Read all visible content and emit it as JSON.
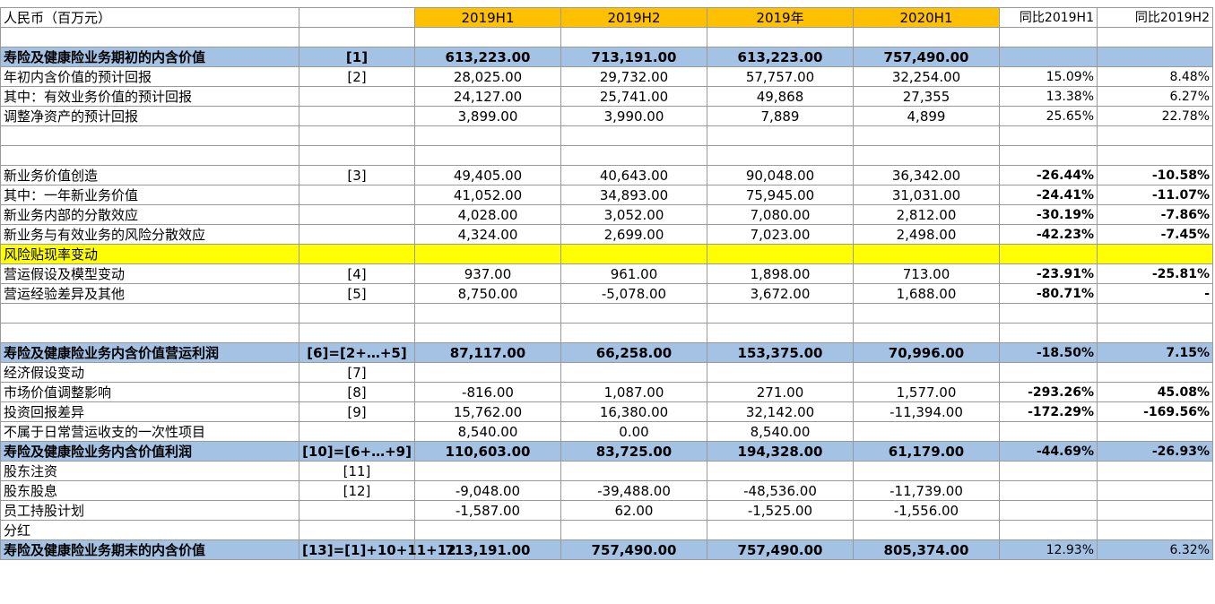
{
  "table": {
    "rows": [
      [
        "人民币（百万元）",
        null,
        "2019H1",
        "2019H2",
        "2019年",
        "2020H1",
        "同比2019H1",
        "同比2019H2"
      ],
      [
        null,
        null,
        null,
        null,
        null,
        null,
        null,
        null
      ],
      [
        "寿险及健康险业务期初的内含价值",
        "[1]",
        "613,223.00",
        "713,191.00",
        "613,223.00",
        "757,490.00",
        null,
        null
      ],
      [
        "年初内含价值的预计回报",
        "[2]",
        "28,025.00",
        "29,732.00",
        "57,757.00",
        "32,254.00",
        "15.09%",
        "8.48%"
      ],
      [
        "其中：有效业务价值的预计回报",
        null,
        "24,127.00",
        "25,741.00",
        "49,868",
        "27,355",
        "13.38%",
        "6.27%"
      ],
      [
        "调整净资产的预计回报",
        null,
        "3,899.00",
        "3,990.00",
        "7,889",
        "4,899",
        "25.65%",
        "22.78%"
      ],
      [
        null,
        null,
        null,
        null,
        null,
        null,
        null,
        null
      ],
      [
        null,
        null,
        null,
        null,
        null,
        null,
        null,
        null
      ],
      [
        "新业务价值创造",
        "[3]",
        "49,405.00",
        "40,643.00",
        "90,048.00",
        "36,342.00",
        "-26.44%",
        "-10.58%"
      ],
      [
        "其中：一年新业务价值",
        null,
        "41,052.00",
        "34,893.00",
        "75,945.00",
        "31,031.00",
        "-24.41%",
        "-11.07%"
      ],
      [
        "新业务内部的分散效应",
        null,
        "4,028.00",
        "3,052.00",
        "7,080.00",
        "2,812.00",
        "-30.19%",
        "-7.86%"
      ],
      [
        "新业务与有效业务的风险分散效应",
        null,
        "4,324.00",
        "2,699.00",
        "7,023.00",
        "2,498.00",
        "-42.23%",
        "-7.45%"
      ],
      [
        "风险贴现率变动",
        null,
        null,
        null,
        null,
        null,
        null,
        null
      ],
      [
        "营运假设及模型变动",
        "[4]",
        "937.00",
        "961.00",
        "1,898.00",
        "713.00",
        "-23.91%",
        "-25.81%"
      ],
      [
        "营运经验差异及其他",
        "[5]",
        "8,750.00",
        "-5,078.00",
        "3,672.00",
        "1,688.00",
        "-80.71%",
        "-"
      ],
      [
        null,
        null,
        null,
        null,
        null,
        null,
        null,
        null
      ],
      [
        null,
        null,
        null,
        null,
        null,
        null,
        null,
        null
      ],
      [
        "寿险及健康险业务内含价值营运利润",
        "[6]=[2+…+5]",
        "87,117.00",
        "66,258.00",
        "153,375.00",
        "70,996.00",
        "-18.50%",
        "7.15%"
      ],
      [
        "经济假设变动",
        "[7]",
        null,
        null,
        null,
        null,
        null,
        null
      ],
      [
        "市场价值调整影响",
        "[8]",
        "-816.00",
        "1,087.00",
        "271.00",
        "1,577.00",
        "-293.26%",
        "45.08%"
      ],
      [
        "投资回报差异",
        "[9]",
        "15,762.00",
        "16,380.00",
        "32,142.00",
        "-11,394.00",
        "-172.29%",
        "-169.56%"
      ],
      [
        "不属于日常营运收支的一次性项目",
        null,
        "8,540.00",
        "0.00",
        "8,540.00",
        null,
        null,
        null
      ],
      [
        "寿险及健康险业务内含价值利润",
        "[10]=[6+…+9]",
        "110,603.00",
        "83,725.00",
        "194,328.00",
        "61,179.00",
        "-44.69%",
        "-26.93%"
      ],
      [
        "股东注资",
        "[11]",
        null,
        null,
        null,
        null,
        null,
        null
      ],
      [
        "股东股息",
        "[12]",
        "-9,048.00",
        "-39,488.00",
        "-48,536.00",
        "-11,739.00",
        null,
        null
      ],
      [
        "员工持股计划",
        null,
        "-1,587.00",
        "62.00",
        "-1,525.00",
        "-1,556.00",
        null,
        null
      ],
      [
        "分红",
        null,
        null,
        null,
        null,
        null,
        null,
        null
      ],
      [
        "寿险及健康险业务期末的内含价值",
        "[13]=[1]+10+11+12",
        "713,191.00",
        "757,490.00",
        "757,490.00",
        "805,374.00",
        "12.93%",
        "6.32%"
      ]
    ]
  }
}
